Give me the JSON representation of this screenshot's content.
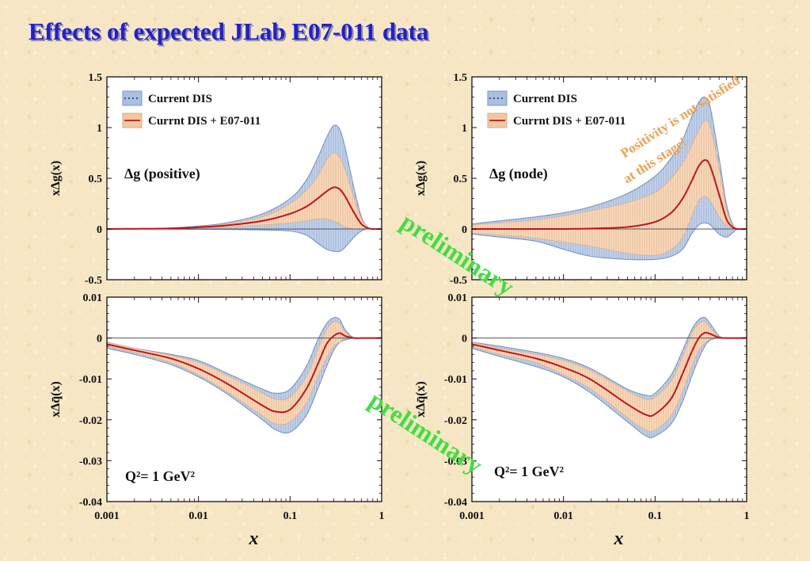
{
  "title": "Effects of expected JLab E07-011 data",
  "colors": {
    "title": "#1f1fd6",
    "current_band": "#a9c0e0",
    "new_band": "#f2c8a0",
    "central": "#c0141c",
    "preliminary": "#3ee03e",
    "positivity": "#f0a050"
  },
  "x_axis_label": "x",
  "x_ticks": [
    "0.001",
    "0.01",
    "0.1",
    "1"
  ],
  "watermark": "preliminary",
  "positivity_note": [
    "Positivity is not satisfied",
    "at this stage!"
  ],
  "legend": {
    "current": "Current DIS",
    "new": "Currnt DIS + E07-011"
  },
  "chart_data": [
    {
      "type": "area",
      "title": "",
      "ylabel": "xΔg(x)",
      "annotation": "Δg (positive)",
      "xscale": "log",
      "xlim": [
        0.001,
        1
      ],
      "ylim": [
        -0.5,
        1.5
      ],
      "y_ticks": [
        "1.5",
        "1",
        "0.5",
        "0",
        "-0.5"
      ],
      "legend_placement": "top-left",
      "grid": false,
      "x": [
        0.001,
        0.002,
        0.005,
        0.01,
        0.02,
        0.05,
        0.1,
        0.15,
        0.2,
        0.25,
        0.3,
        0.35,
        0.4,
        0.5,
        0.6,
        0.7,
        0.8,
        1
      ],
      "series": [
        {
          "name": "Current DIS",
          "kind": "band",
          "upper": [
            0,
            0.002,
            0.01,
            0.03,
            0.06,
            0.15,
            0.3,
            0.48,
            0.7,
            0.9,
            1.02,
            0.98,
            0.8,
            0.4,
            0.12,
            0.02,
            0,
            0
          ],
          "lower": [
            0,
            -0.001,
            -0.002,
            -0.003,
            -0.005,
            -0.01,
            -0.02,
            -0.06,
            -0.14,
            -0.2,
            -0.22,
            -0.22,
            -0.18,
            -0.08,
            -0.02,
            0,
            0,
            0
          ]
        },
        {
          "name": "Currnt DIS + E07-011",
          "kind": "band",
          "upper": [
            0,
            0.002,
            0.008,
            0.025,
            0.05,
            0.12,
            0.25,
            0.38,
            0.52,
            0.68,
            0.75,
            0.7,
            0.58,
            0.3,
            0.1,
            0.02,
            0,
            0
          ],
          "lower": [
            0,
            0.001,
            0.004,
            0.01,
            0.02,
            0.04,
            0.06,
            0.08,
            0.1,
            0.1,
            0.08,
            0.05,
            0.02,
            0,
            0,
            0,
            0,
            0
          ]
        },
        {
          "name": "Currnt DIS + E07-011",
          "kind": "central",
          "values": [
            0,
            0.002,
            0.006,
            0.017,
            0.035,
            0.08,
            0.15,
            0.22,
            0.3,
            0.37,
            0.41,
            0.39,
            0.32,
            0.16,
            0.05,
            0.01,
            0,
            0
          ]
        }
      ]
    },
    {
      "type": "area",
      "title": "",
      "ylabel": "xΔg(x)",
      "annotation": "Δg (node)",
      "xscale": "log",
      "xlim": [
        0.001,
        1
      ],
      "ylim": [
        -0.5,
        1.5
      ],
      "y_ticks": [
        "1.5",
        "1",
        "0.5",
        "0",
        "-0.5"
      ],
      "legend_placement": "top-left",
      "grid": false,
      "x": [
        0.001,
        0.002,
        0.005,
        0.01,
        0.02,
        0.05,
        0.1,
        0.15,
        0.2,
        0.25,
        0.3,
        0.35,
        0.4,
        0.5,
        0.6,
        0.7,
        0.8,
        1
      ],
      "series": [
        {
          "name": "Current DIS",
          "kind": "band",
          "upper": [
            0.05,
            0.08,
            0.12,
            0.16,
            0.22,
            0.35,
            0.52,
            0.7,
            0.88,
            1.1,
            1.25,
            1.3,
            1.2,
            0.7,
            0.25,
            0.05,
            0,
            0
          ],
          "lower": [
            -0.05,
            -0.08,
            -0.12,
            -0.2,
            -0.27,
            -0.3,
            -0.3,
            -0.27,
            -0.2,
            -0.05,
            0.04,
            0.06,
            0.04,
            -0.05,
            -0.08,
            -0.04,
            0,
            0
          ]
        },
        {
          "name": "Currnt DIS + E07-011",
          "kind": "band",
          "upper": [
            0.04,
            0.06,
            0.09,
            0.13,
            0.18,
            0.26,
            0.36,
            0.5,
            0.65,
            0.82,
            0.97,
            1.07,
            1.0,
            0.6,
            0.2,
            0.04,
            0,
            0
          ],
          "lower": [
            -0.04,
            -0.06,
            -0.09,
            -0.13,
            -0.17,
            -0.24,
            -0.26,
            -0.2,
            -0.08,
            0.12,
            0.28,
            0.32,
            0.28,
            0.12,
            0.04,
            0.01,
            0,
            0
          ]
        },
        {
          "name": "Currnt DIS + E07-011",
          "kind": "central",
          "values": [
            0,
            0,
            0,
            0,
            0.005,
            0.02,
            0.07,
            0.16,
            0.3,
            0.47,
            0.62,
            0.68,
            0.62,
            0.34,
            0.1,
            0.02,
            0,
            0
          ]
        }
      ]
    },
    {
      "type": "area",
      "title": "",
      "ylabel": "xΔq̄(x)",
      "annotation": "Q²= 1 GeV²",
      "xscale": "log",
      "xlim": [
        0.001,
        1
      ],
      "ylim": [
        -0.04,
        0.01
      ],
      "y_ticks": [
        "0.01",
        "0",
        "-0.01",
        "-0.02",
        "-0.03",
        "-0.04"
      ],
      "grid": false,
      "x": [
        0.001,
        0.002,
        0.005,
        0.01,
        0.02,
        0.05,
        0.07,
        0.1,
        0.15,
        0.2,
        0.25,
        0.3,
        0.35,
        0.4,
        0.5,
        0.6,
        0.7,
        1
      ],
      "series": [
        {
          "name": "Current DIS",
          "kind": "band",
          "upper": [
            -0.001,
            -0.0025,
            -0.004,
            -0.0055,
            -0.0085,
            -0.0125,
            -0.0135,
            -0.0125,
            -0.007,
            -0.0005,
            0.0035,
            0.005,
            0.0045,
            0.002,
            0,
            0,
            0,
            0
          ],
          "lower": [
            -0.0025,
            -0.004,
            -0.0065,
            -0.0095,
            -0.0135,
            -0.02,
            -0.0225,
            -0.023,
            -0.019,
            -0.0125,
            -0.007,
            -0.003,
            -0.001,
            -0.0005,
            0,
            0,
            0,
            0
          ]
        },
        {
          "name": "Currnt DIS + E07-011",
          "kind": "band",
          "upper": [
            -0.001,
            -0.0025,
            -0.0042,
            -0.006,
            -0.009,
            -0.0135,
            -0.015,
            -0.0145,
            -0.0095,
            -0.003,
            0.002,
            0.004,
            0.0035,
            0.0015,
            0,
            0,
            0,
            0
          ],
          "lower": [
            -0.002,
            -0.0035,
            -0.006,
            -0.009,
            -0.013,
            -0.019,
            -0.021,
            -0.0205,
            -0.016,
            -0.0095,
            -0.005,
            -0.002,
            -0.001,
            0,
            0,
            0,
            0,
            0
          ]
        },
        {
          "name": "Currnt DIS + E07-011",
          "kind": "central",
          "values": [
            -0.0015,
            -0.003,
            -0.005,
            -0.0075,
            -0.011,
            -0.0165,
            -0.018,
            -0.0175,
            -0.0125,
            -0.0065,
            -0.0015,
            0.0005,
            0.0012,
            0.0005,
            0,
            0,
            0,
            0
          ]
        }
      ]
    },
    {
      "type": "area",
      "title": "",
      "ylabel": "xΔq̄(x)",
      "annotation": "Q²= 1 GeV²",
      "xscale": "log",
      "xlim": [
        0.001,
        1
      ],
      "ylim": [
        -0.04,
        0.01
      ],
      "y_ticks": [
        "0.01",
        "0",
        "-0.01",
        "-0.02",
        "-0.03",
        "-0.04"
      ],
      "grid": false,
      "x": [
        0.001,
        0.002,
        0.005,
        0.01,
        0.02,
        0.05,
        0.08,
        0.1,
        0.15,
        0.2,
        0.25,
        0.3,
        0.35,
        0.4,
        0.5,
        0.6,
        0.7,
        1
      ],
      "series": [
        {
          "name": "Current DIS",
          "kind": "band",
          "upper": [
            -0.001,
            -0.002,
            -0.0035,
            -0.005,
            -0.0075,
            -0.0125,
            -0.014,
            -0.0135,
            -0.009,
            -0.003,
            0.002,
            0.0045,
            0.005,
            0.0035,
            0.0005,
            0,
            0,
            0
          ],
          "lower": [
            -0.0025,
            -0.0045,
            -0.007,
            -0.0095,
            -0.0135,
            -0.0205,
            -0.024,
            -0.024,
            -0.021,
            -0.0155,
            -0.0095,
            -0.005,
            -0.002,
            -0.0005,
            0,
            0,
            0,
            0
          ]
        },
        {
          "name": "Currnt DIS + E07-011",
          "kind": "band",
          "upper": [
            -0.001,
            -0.0025,
            -0.004,
            -0.0055,
            -0.008,
            -0.013,
            -0.015,
            -0.0145,
            -0.0105,
            -0.0045,
            0.001,
            0.0035,
            0.004,
            0.0025,
            0.0003,
            0,
            0,
            0
          ],
          "lower": [
            -0.002,
            -0.004,
            -0.006,
            -0.009,
            -0.0125,
            -0.0195,
            -0.0225,
            -0.0225,
            -0.019,
            -0.013,
            -0.007,
            -0.003,
            -0.0012,
            -0.0003,
            0,
            0,
            0,
            0
          ]
        },
        {
          "name": "Currnt DIS + E07-011",
          "kind": "central",
          "values": [
            -0.0015,
            -0.003,
            -0.005,
            -0.0072,
            -0.0102,
            -0.0162,
            -0.0188,
            -0.0186,
            -0.0148,
            -0.0087,
            -0.0035,
            0,
            0.0013,
            0.001,
            0.0001,
            0,
            0,
            0
          ]
        }
      ]
    }
  ]
}
